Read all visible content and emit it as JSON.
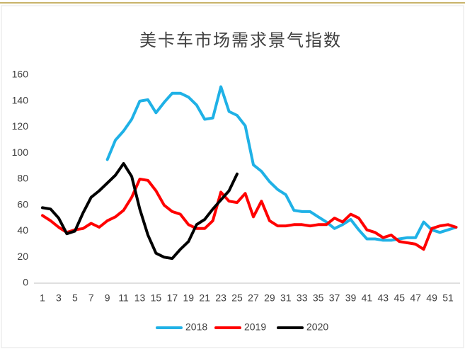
{
  "chart_data": {
    "type": "line",
    "title": "美卡车市场需求景气指数",
    "categories": [
      1,
      null,
      3,
      null,
      5,
      null,
      7,
      null,
      9,
      null,
      11,
      null,
      13,
      null,
      15,
      null,
      17,
      null,
      19,
      null,
      21,
      null,
      23,
      null,
      25,
      null,
      27,
      null,
      29,
      null,
      31,
      null,
      33,
      null,
      35,
      null,
      37,
      null,
      39,
      null,
      41,
      null,
      43,
      null,
      45,
      null,
      47,
      null,
      49,
      null,
      51,
      null
    ],
    "series": [
      {
        "name": "2018",
        "color": "#1fb1e6",
        "values": [
          null,
          null,
          null,
          null,
          null,
          null,
          null,
          null,
          95,
          110,
          117,
          126,
          140,
          141,
          131,
          139,
          146,
          146,
          143,
          137,
          126,
          127,
          151,
          132,
          129,
          121,
          91,
          86,
          78,
          72,
          68,
          56,
          55,
          55,
          51,
          47,
          42,
          45,
          49,
          41,
          34,
          34,
          33,
          33,
          34,
          35,
          35,
          47,
          41,
          39,
          41,
          43
        ]
      },
      {
        "name": "2019",
        "color": "#ff0000",
        "values": [
          52,
          48,
          43,
          39,
          41,
          42,
          46,
          43,
          48,
          51,
          56,
          66,
          80,
          79,
          71,
          60,
          55,
          53,
          45,
          42,
          42,
          48,
          70,
          63,
          62,
          69,
          51,
          63,
          48,
          44,
          44,
          45,
          45,
          44,
          45,
          45,
          50,
          47,
          53,
          50,
          41,
          39,
          35,
          37,
          32,
          31,
          30,
          26,
          42,
          44,
          45,
          43
        ]
      },
      {
        "name": "2020",
        "color": "#000000",
        "values": [
          58,
          57,
          50,
          38,
          40,
          54,
          66,
          71,
          77,
          83,
          92,
          82,
          57,
          37,
          23,
          20,
          19,
          26,
          32,
          45,
          49,
          57,
          64,
          71,
          84,
          null,
          null,
          null,
          null,
          null,
          null,
          null,
          null,
          null,
          null,
          null,
          null,
          null,
          null,
          null,
          null,
          null,
          null,
          null,
          null,
          null,
          null,
          null,
          null,
          null,
          null,
          null
        ]
      }
    ],
    "ylim": [
      0,
      160
    ],
    "yticks": [
      0,
      20,
      40,
      60,
      80,
      100,
      120,
      140,
      160
    ],
    "grid": false
  }
}
